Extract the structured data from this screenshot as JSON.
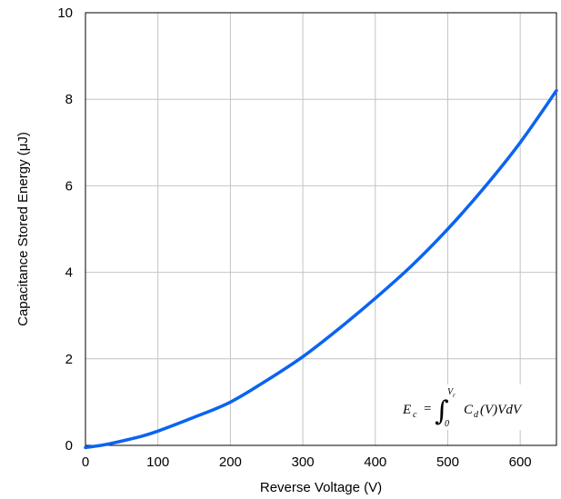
{
  "chart_data": {
    "type": "line",
    "title": "",
    "xlabel": "Reverse Voltage (V)",
    "ylabel": "Capacitance Stored Energy (μJ)",
    "xlim": [
      0,
      650
    ],
    "ylim": [
      0,
      10
    ],
    "xticks": [
      "0",
      "100",
      "200",
      "300",
      "400",
      "500",
      "600"
    ],
    "yticks": [
      "0",
      "2",
      "4",
      "6",
      "8",
      "10"
    ],
    "grid": true,
    "legend": "none",
    "series": [
      {
        "color": "#0a64f0",
        "x": [
          0,
          25,
          50,
          75,
          100,
          150,
          200,
          250,
          300,
          350,
          400,
          450,
          500,
          550,
          600,
          650
        ],
        "y": [
          -0.05,
          0.01,
          0.1,
          0.2,
          0.33,
          0.65,
          1.0,
          1.5,
          2.05,
          2.7,
          3.4,
          4.15,
          5.0,
          5.95,
          7.0,
          8.2
        ]
      }
    ],
    "annotation": {
      "formula_lhs": "E",
      "formula_lhs_sub": "c",
      "formula_eq": "=",
      "integral_upper": "V",
      "integral_upper_sub": "r",
      "integral_lower": "0",
      "formula_rhs_c": "C",
      "formula_rhs_sub": "d",
      "formula_rhs_rest": "(V)VdV"
    }
  }
}
